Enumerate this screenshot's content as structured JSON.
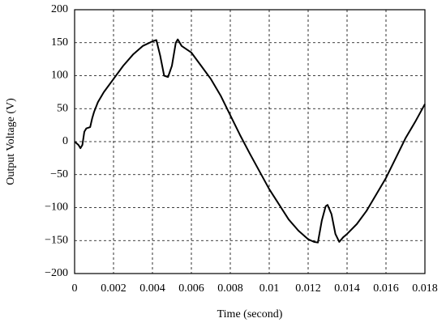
{
  "chart_data": {
    "type": "line",
    "x_label": "Time (second)",
    "y_label": "Output Voltage (V)",
    "xlim": [
      0,
      0.018
    ],
    "xticks": [
      0,
      0.002,
      0.004,
      0.006,
      0.008,
      0.01,
      0.012,
      0.014,
      0.016,
      0.018
    ],
    "ylim": [
      -200,
      200
    ],
    "yticks": [
      {
        "value": -200,
        "label": "−200"
      },
      {
        "value": -150,
        "label": "−150"
      },
      {
        "value": -100,
        "label": "−100"
      },
      {
        "value": -50,
        "label": "−50"
      },
      0,
      50,
      100,
      150,
      200
    ],
    "grid": true,
    "series": [
      {
        "color": "#000000",
        "x": [
          0,
          0.0002,
          0.0003,
          0.0004,
          0.0005,
          0.0006,
          0.0008,
          0.0009,
          0.001,
          0.0012,
          0.0015,
          0.002,
          0.0025,
          0.003,
          0.0035,
          0.004,
          0.0042,
          0.0044,
          0.0046,
          0.0048,
          0.005,
          0.0052,
          0.0053,
          0.0055,
          0.006,
          0.0065,
          0.007,
          0.0075,
          0.008,
          0.0085,
          0.009,
          0.0095,
          0.01,
          0.0105,
          0.011,
          0.0115,
          0.012,
          0.0123,
          0.0125,
          0.0127,
          0.0129,
          0.013,
          0.0132,
          0.0134,
          0.0136,
          0.0138,
          0.014,
          0.0145,
          0.015,
          0.0155,
          0.016,
          0.0165,
          0.017,
          0.0175,
          0.018
        ],
        "values": [
          0,
          -5,
          -10,
          -5,
          15,
          20,
          22,
          35,
          45,
          60,
          75,
          95,
          115,
          132,
          145,
          152,
          154,
          130,
          100,
          98,
          115,
          150,
          155,
          145,
          135,
          115,
          95,
          70,
          40,
          10,
          -18,
          -45,
          -72,
          -95,
          -118,
          -135,
          -148,
          -152,
          -153,
          -120,
          -98,
          -96,
          -110,
          -140,
          -152,
          -145,
          -140,
          -125,
          -105,
          -80,
          -55,
          -25,
          5,
          30,
          57
        ]
      }
    ]
  }
}
